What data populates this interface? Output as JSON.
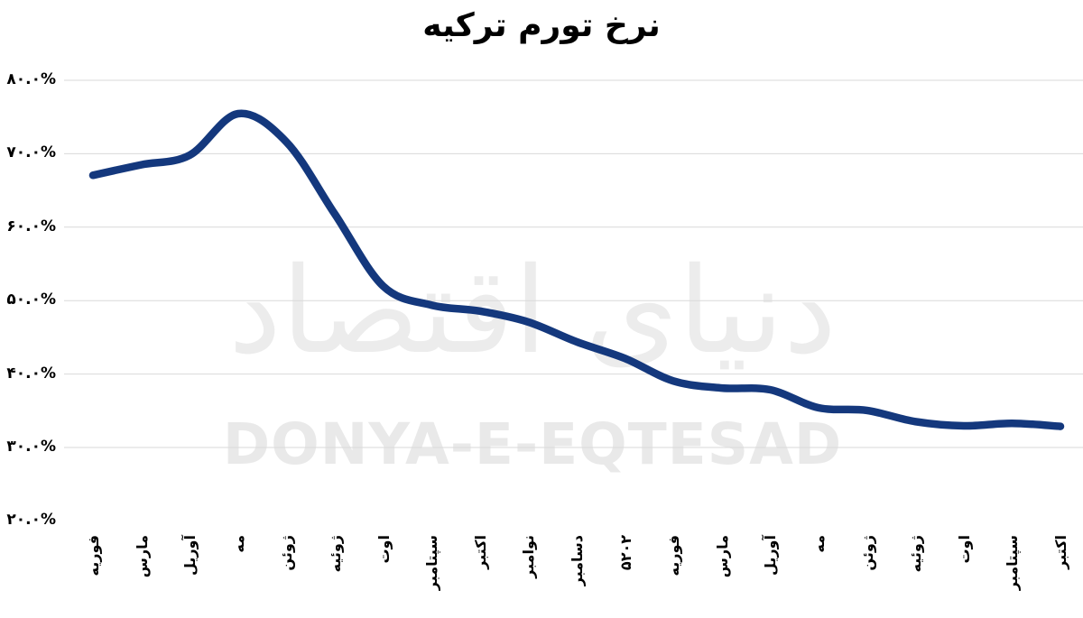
{
  "title": "نرخ تورم ترکیه",
  "watermark": {
    "persian": "دنیای اقتصاد",
    "latin": "DONYA-E-EQTESAD",
    "persian_color": "#ececec",
    "latin_color": "#e9e9e9"
  },
  "chart_data": {
    "type": "line",
    "title": "نرخ تورم ترکیه",
    "categories": [
      "فوریه",
      "مارس",
      "آوریل",
      "مه",
      "ژوئن",
      "ژوئیه",
      "اوت",
      "سپتامبر",
      "اکتبر",
      "نوامبر",
      "دسامبر",
      "۲۰۲۵",
      "فوریه",
      "مارس",
      "آوریل",
      "مه",
      "ژوئن",
      "ژوئیه",
      "اوت",
      "سپتامبر",
      "اکتبر"
    ],
    "values": [
      67.07,
      68.5,
      69.8,
      75.45,
      71.6,
      61.78,
      51.97,
      49.38,
      48.58,
      47.09,
      44.38,
      42.12,
      39.05,
      38.1,
      37.86,
      35.41,
      35.05,
      33.52,
      32.95,
      33.29,
      32.87
    ],
    "yticks": [
      {
        "label": "۸۰.۰%",
        "value": 80
      },
      {
        "label": "۷۰.۰%",
        "value": 70
      },
      {
        "label": "۶۰.۰%",
        "value": 60
      },
      {
        "label": "۵۰.۰%",
        "value": 50
      },
      {
        "label": "۴۰.۰%",
        "value": 40
      },
      {
        "label": "۳۰.۰%",
        "value": 30
      },
      {
        "label": "۲۰.۰%",
        "value": 20
      }
    ],
    "gridline_values": [
      80,
      70,
      60,
      50,
      40,
      30
    ],
    "ylim": [
      20,
      80
    ],
    "xlabel": "",
    "ylabel": "",
    "legend": "none",
    "grid": "horizontal",
    "line_color": "#14387d",
    "gridline_color": "#d9d9d9"
  }
}
